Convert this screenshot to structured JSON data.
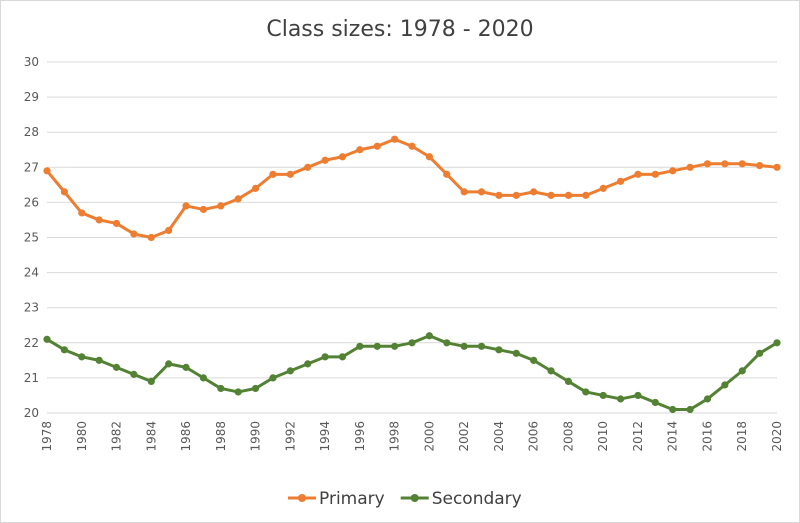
{
  "chart_data": {
    "type": "line",
    "title": "Class sizes: 1978 - 2020",
    "xlabel": "",
    "ylabel": "",
    "ylim": [
      20,
      30
    ],
    "yticks": [
      20,
      21,
      22,
      23,
      24,
      25,
      26,
      27,
      28,
      29,
      30
    ],
    "grid": true,
    "legend_position": "bottom",
    "x": [
      1978,
      1979,
      1980,
      1981,
      1982,
      1983,
      1984,
      1985,
      1986,
      1987,
      1988,
      1989,
      1990,
      1991,
      1992,
      1993,
      1994,
      1995,
      1996,
      1997,
      1998,
      1999,
      2000,
      2001,
      2002,
      2003,
      2004,
      2005,
      2006,
      2007,
      2008,
      2009,
      2010,
      2011,
      2012,
      2013,
      2014,
      2015,
      2016,
      2017,
      2018,
      2019,
      2020
    ],
    "xtick_labels": [
      "1978",
      "1980",
      "1982",
      "1984",
      "1986",
      "1988",
      "1990",
      "1992",
      "1994",
      "1996",
      "1998",
      "2000",
      "2002",
      "2004",
      "2006",
      "2008",
      "2010",
      "2012",
      "2014",
      "2016",
      "2018",
      "2020"
    ],
    "series": [
      {
        "name": "Primary",
        "color": "#ED7D31",
        "values": [
          26.9,
          26.3,
          25.7,
          25.5,
          25.4,
          25.1,
          25.0,
          25.2,
          25.9,
          25.8,
          25.9,
          26.1,
          26.4,
          26.8,
          26.8,
          27.0,
          27.2,
          27.3,
          27.5,
          27.6,
          27.8,
          27.6,
          27.3,
          26.8,
          26.3,
          26.3,
          26.2,
          26.2,
          26.3,
          26.2,
          26.2,
          26.2,
          26.4,
          26.6,
          26.8,
          26.8,
          26.9,
          27.0,
          27.1,
          27.1,
          27.1,
          27.05,
          27.0
        ]
      },
      {
        "name": "Secondary",
        "color": "#548235",
        "values": [
          22.1,
          21.8,
          21.6,
          21.5,
          21.3,
          21.1,
          20.9,
          21.4,
          21.3,
          21.0,
          20.7,
          20.6,
          20.7,
          21.0,
          21.2,
          21.4,
          21.6,
          21.6,
          21.9,
          21.9,
          21.9,
          22.0,
          22.2,
          22.0,
          21.9,
          21.9,
          21.8,
          21.7,
          21.5,
          21.2,
          20.9,
          20.6,
          20.5,
          20.4,
          20.5,
          20.3,
          20.1,
          20.1,
          20.4,
          20.8,
          21.2,
          21.7,
          22.0
        ]
      }
    ]
  }
}
